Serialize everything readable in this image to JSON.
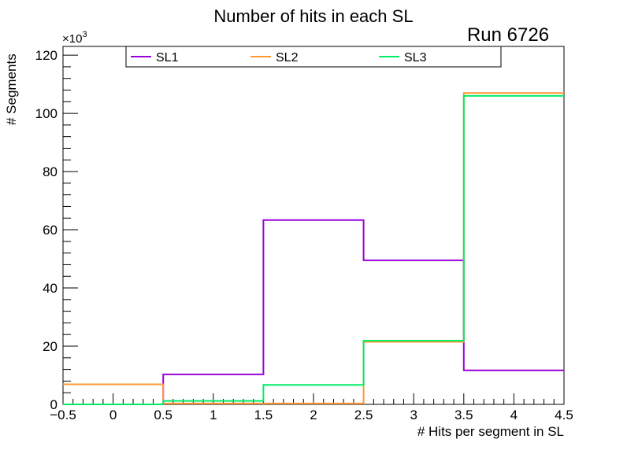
{
  "chart_data": {
    "type": "step-histogram",
    "title": "Number of hits in each SL",
    "run_label": "Run 6726",
    "xlabel": "# Hits per segment in SL",
    "ylabel": "# Segments",
    "y_multiplier_label": "×10",
    "y_multiplier_exp": "3",
    "xlim": [
      -0.5,
      4.5
    ],
    "ylim": [
      0,
      123000
    ],
    "x_ticks": [
      -0.5,
      0,
      0.5,
      1,
      1.5,
      2,
      2.5,
      3,
      3.5,
      4,
      4.5
    ],
    "x_tick_labels": [
      "−0.5",
      "0",
      "0.5",
      "1",
      "1.5",
      "2",
      "2.5",
      "3",
      "3.5",
      "4",
      "4.5"
    ],
    "y_ticks": [
      0,
      20000,
      40000,
      60000,
      80000,
      100000,
      120000
    ],
    "y_tick_labels": [
      "0",
      "20",
      "40",
      "60",
      "80",
      "100",
      "120"
    ],
    "bin_edges": [
      -0.5,
      0.5,
      1.5,
      2.5,
      3.5,
      4.5
    ],
    "categories": [
      "0",
      "1",
      "2",
      "3",
      "4"
    ],
    "series": [
      {
        "name": "SL1",
        "color": "#9900dd",
        "values": [
          0,
          10300,
          63300,
          49500,
          11700
        ]
      },
      {
        "name": "SL2",
        "color": "#ff9933",
        "values": [
          6900,
          300,
          300,
          21500,
          107000
        ]
      },
      {
        "name": "SL3",
        "color": "#00ee66",
        "values": [
          0,
          1200,
          6700,
          21900,
          106000
        ]
      }
    ],
    "legend_position": "top-center"
  }
}
